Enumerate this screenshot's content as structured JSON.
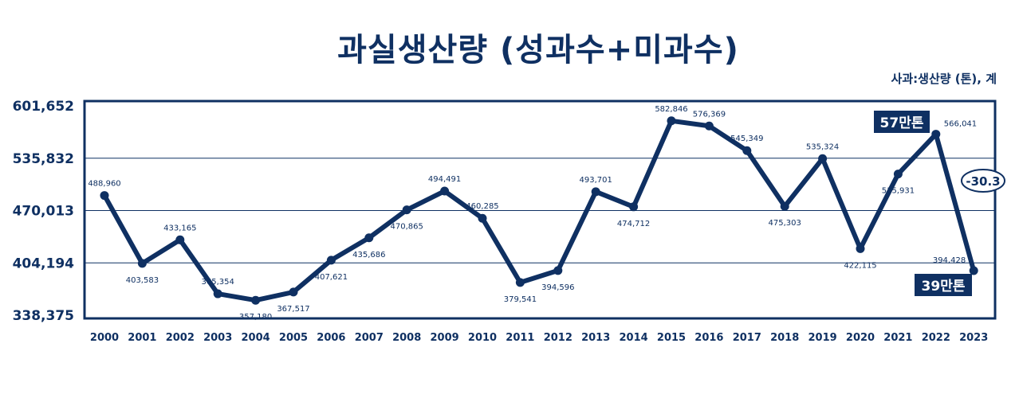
{
  "chart_data": {
    "type": "line",
    "title": "과실생산량 (성과수+미과수)",
    "unit_label": "사과:생산량 (톤), 계",
    "x": [
      "2000",
      "2001",
      "2002",
      "2003",
      "2004",
      "2005",
      "2006",
      "2007",
      "2008",
      "2009",
      "2010",
      "2011",
      "2012",
      "2013",
      "2014",
      "2015",
      "2016",
      "2017",
      "2018",
      "2019",
      "2020",
      "2021",
      "2022",
      "2023"
    ],
    "values": [
      488960,
      403583,
      433165,
      365354,
      357180,
      367517,
      407621,
      435686,
      470865,
      494491,
      460285,
      379541,
      394596,
      493701,
      474712,
      582846,
      576369,
      545349,
      475303,
      535324,
      422115,
      515931,
      566041,
      394428
    ],
    "labels": [
      "488,960",
      "403,583",
      "433,165",
      "365,354",
      "357,180",
      "367,517",
      "407,621",
      "435,686",
      "470,865",
      "494,491",
      "460,285",
      "379,541",
      "394,596",
      "493,701",
      "474,712",
      "582,846",
      "576,369",
      "545,349",
      "475,303",
      "535,324",
      "422,115",
      "515,931",
      "566,041",
      "394,428"
    ],
    "yticks": [
      "601,652",
      "535,832",
      "470,013",
      "404,194",
      "338,375"
    ],
    "ylim": [
      338375,
      601652
    ],
    "grid": "horizontal",
    "callouts": {
      "high": "57만톤",
      "low": "39만톤",
      "change": "-30.3"
    },
    "colors": {
      "line": "#0f3062",
      "grid": "#0f3062",
      "callout_bg": "#0f3062"
    }
  }
}
